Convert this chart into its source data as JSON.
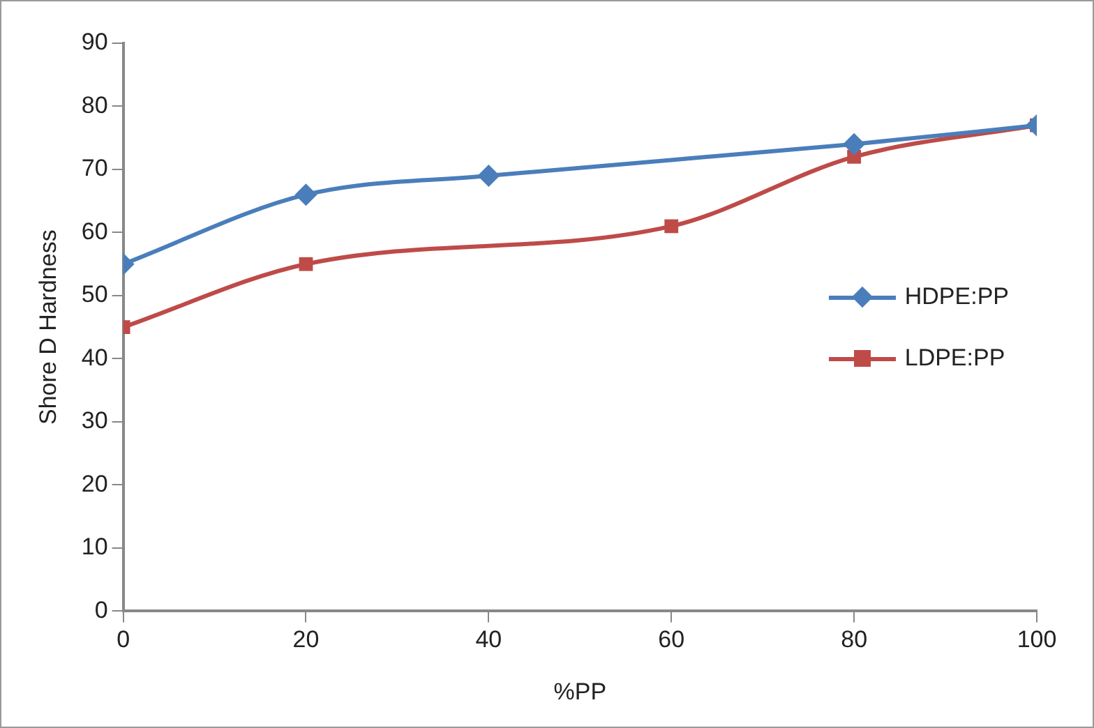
{
  "chart_data": {
    "type": "line",
    "xlabel": "%PP",
    "ylabel": "Shore D Hardness",
    "xlim": [
      0,
      100
    ],
    "xticks": [
      0,
      20,
      40,
      60,
      80,
      100
    ],
    "ylim": [
      0,
      90
    ],
    "yticks": [
      0,
      10,
      20,
      30,
      40,
      50,
      60,
      70,
      80,
      90
    ],
    "grid": false,
    "legend": "right",
    "line_style": "solid",
    "series": [
      {
        "name": "HDPE:PP",
        "color": "#4a7ebb",
        "marker": "diamond",
        "x": [
          0,
          20,
          40,
          80,
          100
        ],
        "values": [
          55,
          66,
          69,
          74,
          77
        ]
      },
      {
        "name": "LDPE:PP",
        "color": "#be4b48",
        "marker": "square",
        "x": [
          0,
          20,
          60,
          80,
          100
        ],
        "values": [
          45,
          55,
          61,
          72,
          77
        ]
      }
    ]
  }
}
